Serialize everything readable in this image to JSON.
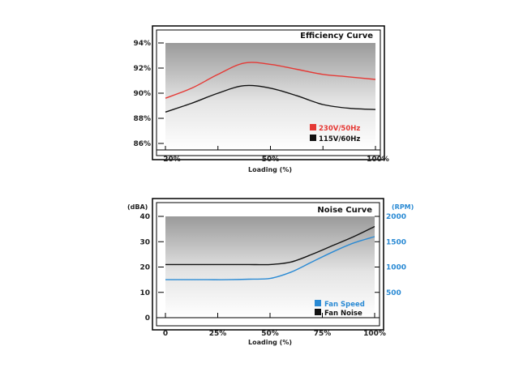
{
  "chart_data": [
    {
      "type": "line",
      "title": "Efficiency Curve",
      "xlabel": "Loading (%)",
      "ylabel": "",
      "x_tick_labels": [
        "20%",
        "50%",
        "100%"
      ],
      "y_tick_labels": [
        "86%",
        "88%",
        "90%",
        "92%",
        "94%"
      ],
      "ylim": [
        86,
        94
      ],
      "grid": false,
      "legend_position": "bottom-right",
      "x": [
        20,
        30,
        40,
        50,
        60,
        70,
        80,
        90,
        100
      ],
      "series": [
        {
          "name": "230V/50Hz",
          "color": "#e53935",
          "values": [
            89.6,
            90.4,
            91.5,
            92.4,
            92.3,
            91.9,
            91.5,
            91.3,
            91.1
          ]
        },
        {
          "name": "115V/60Hz",
          "color": "#111111",
          "values": [
            88.5,
            89.2,
            90.0,
            90.6,
            90.4,
            89.8,
            89.1,
            88.8,
            88.7
          ]
        }
      ]
    },
    {
      "type": "line",
      "title": "Noise Curve",
      "xlabel": "Loading (%)",
      "ylabel": "(dBA)",
      "y2label": "(RPM)",
      "x_tick_labels": [
        "0",
        "25%",
        "50%",
        "75%",
        "100%"
      ],
      "y_tick_labels": [
        "0",
        "10",
        "20",
        "30",
        "40"
      ],
      "y2_tick_labels": [
        "500",
        "1000",
        "1500",
        "2000"
      ],
      "ylim": [
        0,
        40
      ],
      "grid": false,
      "legend_position": "bottom-right",
      "x": [
        0,
        10,
        20,
        30,
        40,
        50,
        60,
        70,
        80,
        90,
        100
      ],
      "series": [
        {
          "name": "Fan Speed",
          "color": "#2a8ad4",
          "axis": "right",
          "values": [
            15,
            15,
            15,
            15,
            15.2,
            15.5,
            18,
            22,
            26,
            29.5,
            32
          ]
        },
        {
          "name": "Fan Noise",
          "color": "#111111",
          "axis": "left",
          "values": [
            21,
            21,
            21,
            21,
            21,
            21,
            22,
            25,
            28.5,
            32,
            36
          ]
        }
      ]
    }
  ]
}
